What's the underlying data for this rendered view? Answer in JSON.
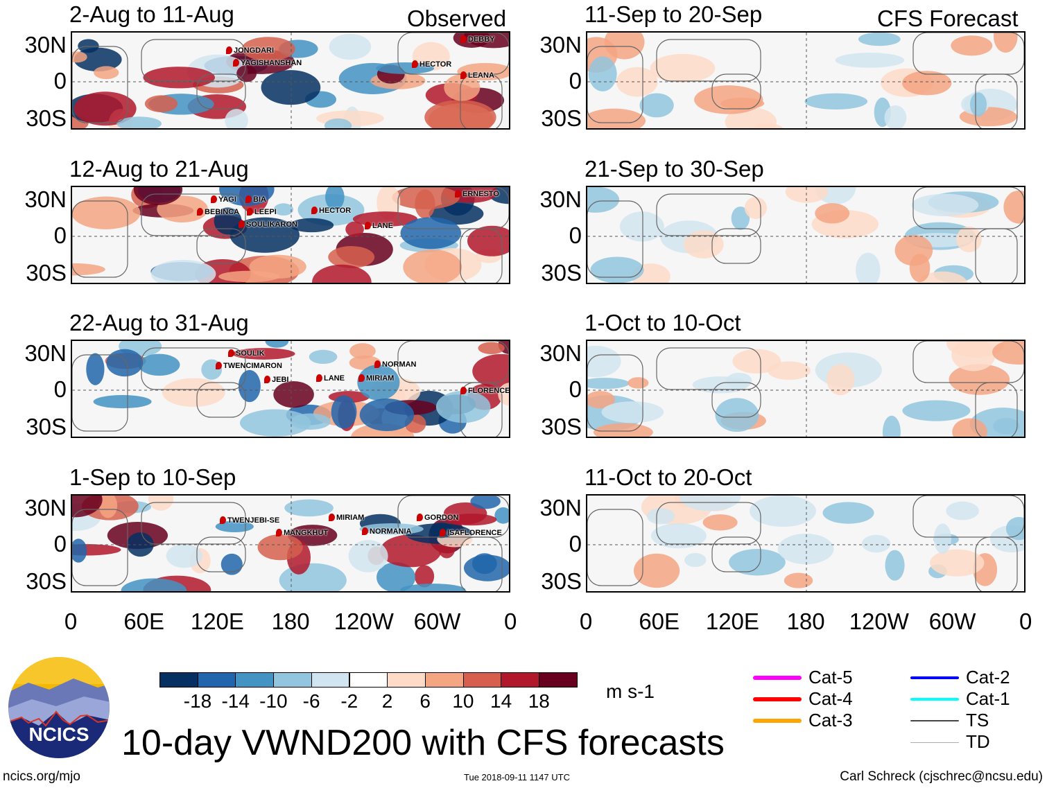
{
  "header": {
    "observed_label": "Observed",
    "forecast_label": "CFS Forecast"
  },
  "panels_left": [
    {
      "title": "2-Aug to 11-Aug",
      "storms": [
        "JONGDARI",
        "YAGISHANSHAN",
        "HECTOR",
        "LEANA",
        "DEBBY"
      ]
    },
    {
      "title": "12-Aug to 21-Aug",
      "storms": [
        "YAGI",
        "BIA",
        "BEBINCA",
        "LEEPI",
        "SOULIKARON",
        "HECTOR",
        "LANE",
        "ERNESTO"
      ]
    },
    {
      "title": "22-Aug to 31-Aug",
      "storms": [
        "SOULIK",
        "TWENCIMARON",
        "JEBI",
        "LANE",
        "MIRIAM",
        "NORMAN",
        "FLORENCE"
      ]
    },
    {
      "title": "1-Sep to 10-Sep",
      "storms": [
        "TWENJEBI-SE",
        "MANGKHUT",
        "MIRIAM",
        "NORMANIA",
        "GORDON",
        "ISAFLORENCE"
      ]
    }
  ],
  "panels_right": [
    {
      "title": "11-Sep to 20-Sep"
    },
    {
      "title": "21-Sep to 30-Sep"
    },
    {
      "title": "1-Oct to 10-Oct"
    },
    {
      "title": "11-Oct to 20-Oct"
    }
  ],
  "lat_labels": [
    "30N",
    "0",
    "30S"
  ],
  "lon_labels": [
    "0",
    "60E",
    "120E",
    "180",
    "120W",
    "60W",
    "0"
  ],
  "colorbar": {
    "colors": [
      "#053061",
      "#2166ac",
      "#4393c3",
      "#92c5de",
      "#d1e5f0",
      "#ffffff",
      "#fddbc7",
      "#f4a582",
      "#d6604d",
      "#b2182b",
      "#67001f"
    ],
    "labels": [
      "-18",
      "-14",
      "-10",
      "-6",
      "-2",
      "2",
      "6",
      "10",
      "14",
      "18"
    ],
    "units": "m s-1"
  },
  "legend": [
    {
      "label": "Cat-5",
      "color": "#ff00ff"
    },
    {
      "label": "Cat-4",
      "color": "#ff0000"
    },
    {
      "label": "Cat-3",
      "color": "#ffa500"
    },
    {
      "label": "Cat-2",
      "color": "#0000ff"
    },
    {
      "label": "Cat-1",
      "color": "#00ffff"
    },
    {
      "label": "TS",
      "color": "#444444"
    },
    {
      "label": "TD",
      "color": "#aaaaaa"
    }
  ],
  "logo": {
    "text": "NCICS"
  },
  "footer": {
    "title": "10-day VWND200 with CFS forecasts",
    "url": "ncics.org/mjo",
    "timestamp": "Tue 2018-09-11 1147 UTC",
    "credit": "Carl Schreck (cjschrec@ncsu.edu)"
  }
}
